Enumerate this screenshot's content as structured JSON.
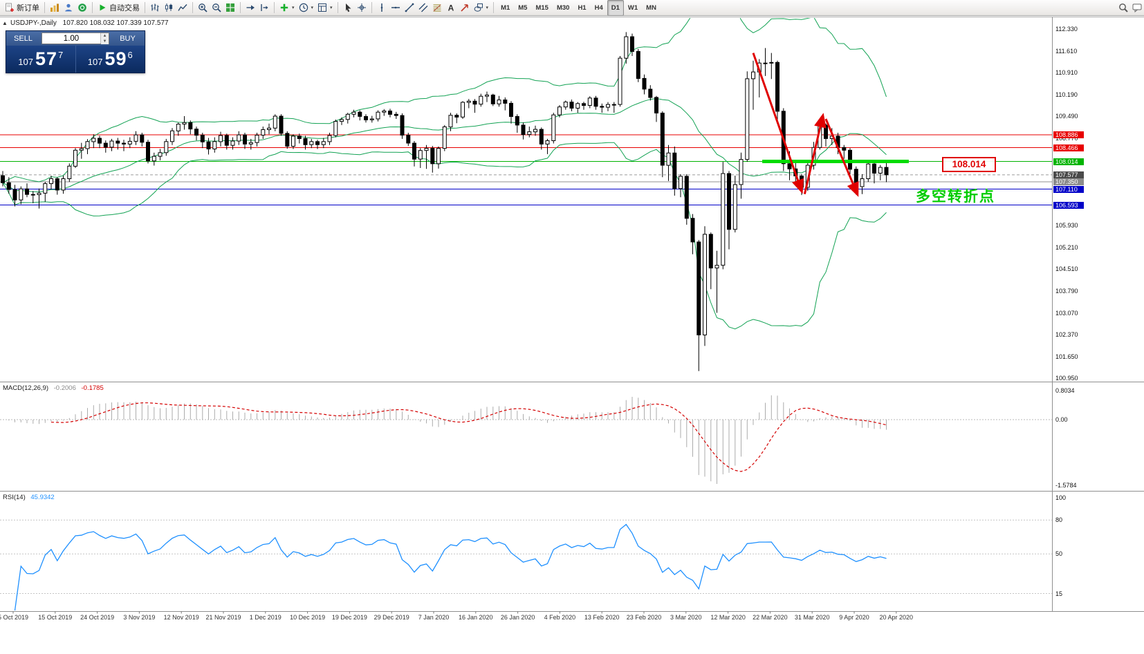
{
  "toolbar": {
    "groups": [
      {
        "items": [
          {
            "name": "new-order-button",
            "icon": "new-order",
            "label": "新订单"
          }
        ]
      },
      {
        "items": [
          {
            "name": "charts-window-button",
            "icon": "charts"
          },
          {
            "name": "profiles-button",
            "icon": "profiles"
          },
          {
            "name": "community-button",
            "icon": "community"
          }
        ]
      },
      {
        "items": [
          {
            "name": "autotrading-button",
            "icon": "play",
            "label": "自动交易"
          }
        ]
      },
      {
        "items": [
          {
            "name": "bar-chart-button",
            "icon": "bars"
          },
          {
            "name": "candle-chart-button",
            "icon": "candles"
          },
          {
            "name": "line-chart-button",
            "icon": "line"
          }
        ]
      },
      {
        "items": [
          {
            "name": "zoom-in-button",
            "icon": "zoom-in"
          },
          {
            "name": "zoom-out-button",
            "icon": "zoom-out"
          },
          {
            "name": "tile-windows-button",
            "icon": "tile"
          }
        ]
      },
      {
        "items": [
          {
            "name": "auto-scroll-button",
            "icon": "autoscroll"
          },
          {
            "name": "chart-shift-button",
            "icon": "shift"
          }
        ]
      },
      {
        "items": [
          {
            "name": "indicators-button",
            "icon": "plus",
            "caret": true
          },
          {
            "name": "periods-button",
            "icon": "clock",
            "caret": true
          },
          {
            "name": "templates-button",
            "icon": "template",
            "caret": true
          }
        ]
      },
      {
        "items": [
          {
            "name": "cursor-button",
            "icon": "cursor"
          },
          {
            "name": "crosshair-button",
            "icon": "crosshair"
          }
        ]
      },
      {
        "items": [
          {
            "name": "vertical-line-button",
            "icon": "vline"
          },
          {
            "name": "horizontal-line-button",
            "icon": "hline"
          },
          {
            "name": "trendline-button",
            "icon": "trendline"
          },
          {
            "name": "channel-button",
            "icon": "channel"
          },
          {
            "name": "fibonacci-button",
            "icon": "fibo"
          },
          {
            "name": "text-button",
            "icon": "text"
          },
          {
            "name": "arrows-button",
            "icon": "arrows-tool"
          },
          {
            "name": "shapes-button",
            "icon": "shapes",
            "caret": true
          }
        ]
      },
      {
        "items": [
          {
            "name": "tf-m1",
            "label": "M1"
          },
          {
            "name": "tf-m5",
            "label": "M5"
          },
          {
            "name": "tf-m15",
            "label": "M15"
          },
          {
            "name": "tf-m30",
            "label": "M30"
          },
          {
            "name": "tf-h1",
            "label": "H1"
          },
          {
            "name": "tf-h4",
            "label": "H4"
          },
          {
            "name": "tf-d1",
            "label": "D1",
            "active": true
          },
          {
            "name": "tf-w1",
            "label": "W1"
          },
          {
            "name": "tf-mn",
            "label": "MN"
          }
        ]
      },
      {
        "align": "right",
        "items": [
          {
            "name": "search-button",
            "icon": "search"
          },
          {
            "name": "feedback-button",
            "icon": "feedback"
          }
        ]
      }
    ]
  },
  "chart": {
    "toggle_glyph": "▲",
    "title": {
      "symbol": "USDJPY-,Daily",
      "ohlc": "107.820 108.032 107.339 107.577"
    },
    "one_click": {
      "sell_label": "SELL",
      "buy_label": "BUY",
      "volume": "1.00",
      "sell_small": "107",
      "sell_big": "57",
      "sell_sup": "7",
      "buy_small": "107",
      "buy_big": "59",
      "buy_sup": "6",
      "spin_up": "▲",
      "spin_down": "▼"
    }
  },
  "annotations": {
    "box_text": "108.014",
    "cn_text": "多空转折点"
  },
  "price_scale": {
    "regular": [
      "112.330",
      "111.610",
      "110.910",
      "110.190",
      "109.490",
      "108.770",
      "105.930",
      "105.210",
      "104.510",
      "103.790",
      "103.070",
      "102.370",
      "101.650",
      "100.950"
    ],
    "special": [
      {
        "text": "108.886",
        "bg": "#E80000"
      },
      {
        "text": "108.466",
        "bg": "#E80000"
      },
      {
        "text": "108.014",
        "bg": "#00B400"
      },
      {
        "text": "107.577",
        "bg": "#4A4A4A"
      },
      {
        "text": "107.350",
        "bg": "#8C8C8C"
      },
      {
        "text": "107.110",
        "bg": "#0000C8"
      },
      {
        "text": "106.593",
        "bg": "#0000C8"
      }
    ]
  },
  "time_axis": [
    "5 Oct 2019",
    "15 Oct 2019",
    "24 Oct 2019",
    "3 Nov 2019",
    "12 Nov 2019",
    "21 Nov 2019",
    "1 Dec 2019",
    "10 Dec 2019",
    "19 Dec 2019",
    "29 Dec 2019",
    "7 Jan 2020",
    "16 Jan 2020",
    "26 Jan 2020",
    "4 Feb 2020",
    "13 Feb 2020",
    "23 Feb 2020",
    "3 Mar 2020",
    "12 Mar 2020",
    "22 Mar 2020",
    "31 Mar 2020",
    "9 Apr 2020",
    "20 Apr 2020"
  ],
  "chart_data": {
    "type": "candlestick",
    "symbol": "USDJPY-",
    "period": "Daily",
    "ohlc_current": {
      "open": 107.82,
      "high": 108.032,
      "low": 107.339,
      "close": 107.577
    },
    "ylim": [
      100.86,
      112.69
    ],
    "candles": [
      [
        107.55,
        107.7,
        107.2,
        107.32
      ],
      [
        107.32,
        107.5,
        106.96,
        107.1
      ],
      [
        107.1,
        107.25,
        106.55,
        106.76
      ],
      [
        106.76,
        107.2,
        106.62,
        107.12
      ],
      [
        107.12,
        107.3,
        106.85,
        106.94
      ],
      [
        106.94,
        107.05,
        106.65,
        106.93
      ],
      [
        106.93,
        107.13,
        106.48,
        106.98
      ],
      [
        106.98,
        107.35,
        106.7,
        107.29
      ],
      [
        107.29,
        107.55,
        107.1,
        107.45
      ],
      [
        107.45,
        107.5,
        106.93,
        107.08
      ],
      [
        107.08,
        107.55,
        106.96,
        107.45
      ],
      [
        107.45,
        107.95,
        107.35,
        107.86
      ],
      [
        107.86,
        108.45,
        107.8,
        108.38
      ],
      [
        108.38,
        108.62,
        108.1,
        108.43
      ],
      [
        108.43,
        108.74,
        108.25,
        108.66
      ],
      [
        108.66,
        108.9,
        108.45,
        108.77
      ],
      [
        108.77,
        108.85,
        108.45,
        108.61
      ],
      [
        108.61,
        108.7,
        108.3,
        108.48
      ],
      [
        108.48,
        108.75,
        108.35,
        108.68
      ],
      [
        108.68,
        108.78,
        108.4,
        108.61
      ],
      [
        108.61,
        108.72,
        108.35,
        108.58
      ],
      [
        108.58,
        108.8,
        108.45,
        108.67
      ],
      [
        108.67,
        109.0,
        108.55,
        108.88
      ],
      [
        108.88,
        108.95,
        108.5,
        108.64
      ],
      [
        108.64,
        108.72,
        107.95,
        108.03
      ],
      [
        108.03,
        108.3,
        107.88,
        108.18
      ],
      [
        108.18,
        108.42,
        108.05,
        108.3
      ],
      [
        108.3,
        108.75,
        108.2,
        108.66
      ],
      [
        108.66,
        109.1,
        108.55,
        109.01
      ],
      [
        109.01,
        109.28,
        108.85,
        109.23
      ],
      [
        109.23,
        109.49,
        109.05,
        109.28
      ],
      [
        109.28,
        109.35,
        108.9,
        109.07
      ],
      [
        109.07,
        109.15,
        108.7,
        108.87
      ],
      [
        108.87,
        108.95,
        108.45,
        108.65
      ],
      [
        108.65,
        108.78,
        108.24,
        108.42
      ],
      [
        108.42,
        108.8,
        108.3,
        108.66
      ],
      [
        108.66,
        108.98,
        108.5,
        108.86
      ],
      [
        108.86,
        108.92,
        108.4,
        108.54
      ],
      [
        108.54,
        108.8,
        108.4,
        108.68
      ],
      [
        108.68,
        109.0,
        108.55,
        108.88
      ],
      [
        108.88,
        108.95,
        108.42,
        108.58
      ],
      [
        108.58,
        108.75,
        108.4,
        108.63
      ],
      [
        108.63,
        108.95,
        108.5,
        108.87
      ],
      [
        108.87,
        109.15,
        108.75,
        109.05
      ],
      [
        109.05,
        109.25,
        108.9,
        109.1
      ],
      [
        109.1,
        109.55,
        109.0,
        109.49
      ],
      [
        109.49,
        109.55,
        108.85,
        108.93
      ],
      [
        108.93,
        109.0,
        108.43,
        108.51
      ],
      [
        108.51,
        108.9,
        108.42,
        108.84
      ],
      [
        108.84,
        108.92,
        108.6,
        108.76
      ],
      [
        108.76,
        108.85,
        108.4,
        108.56
      ],
      [
        108.56,
        108.75,
        108.45,
        108.66
      ],
      [
        108.66,
        108.72,
        108.42,
        108.56
      ],
      [
        108.56,
        108.78,
        108.45,
        108.66
      ],
      [
        108.66,
        108.95,
        108.55,
        108.86
      ],
      [
        108.86,
        109.38,
        108.8,
        109.32
      ],
      [
        109.32,
        109.45,
        109.2,
        109.38
      ],
      [
        109.38,
        109.6,
        109.25,
        109.55
      ],
      [
        109.55,
        109.7,
        109.45,
        109.62
      ],
      [
        109.62,
        109.68,
        109.35,
        109.48
      ],
      [
        109.48,
        109.55,
        109.28,
        109.37
      ],
      [
        109.37,
        109.5,
        109.28,
        109.4
      ],
      [
        109.4,
        109.68,
        109.32,
        109.62
      ],
      [
        109.62,
        109.72,
        109.5,
        109.66
      ],
      [
        109.66,
        109.73,
        109.45,
        109.55
      ],
      [
        109.55,
        109.63,
        109.4,
        109.51
      ],
      [
        109.51,
        109.58,
        108.75,
        108.87
      ],
      [
        108.87,
        108.95,
        108.52,
        108.61
      ],
      [
        108.61,
        108.68,
        107.85,
        108.09
      ],
      [
        108.09,
        108.45,
        107.8,
        108.37
      ],
      [
        108.37,
        108.55,
        107.77,
        108.44
      ],
      [
        108.44,
        108.52,
        107.65,
        107.94
      ],
      [
        107.94,
        108.5,
        107.78,
        108.44
      ],
      [
        108.44,
        109.2,
        108.35,
        109.14
      ],
      [
        109.14,
        109.6,
        109.0,
        109.52
      ],
      [
        109.52,
        109.58,
        109.26,
        109.46
      ],
      [
        109.46,
        109.98,
        109.4,
        109.94
      ],
      [
        109.94,
        110.05,
        109.75,
        109.98
      ],
      [
        109.98,
        110.05,
        109.6,
        109.88
      ],
      [
        109.88,
        110.22,
        109.8,
        110.14
      ],
      [
        110.14,
        110.29,
        109.95,
        110.18
      ],
      [
        110.18,
        110.22,
        109.82,
        109.89
      ],
      [
        109.89,
        110.15,
        109.8,
        110.02
      ],
      [
        110.02,
        110.1,
        109.68,
        109.91
      ],
      [
        109.91,
        109.98,
        109.25,
        109.48
      ],
      [
        109.48,
        109.55,
        108.95,
        109.2
      ],
      [
        109.2,
        109.28,
        108.73,
        108.89
      ],
      [
        108.89,
        109.15,
        108.8,
        108.98
      ],
      [
        108.98,
        109.18,
        108.85,
        109.06
      ],
      [
        109.06,
        109.12,
        108.4,
        108.58
      ],
      [
        108.58,
        108.75,
        108.25,
        108.69
      ],
      [
        108.69,
        109.6,
        108.6,
        109.53
      ],
      [
        109.53,
        109.85,
        109.45,
        109.79
      ],
      [
        109.79,
        110.0,
        109.7,
        109.95
      ],
      [
        109.95,
        110.03,
        109.65,
        109.75
      ],
      [
        109.75,
        109.95,
        109.6,
        109.9
      ],
      [
        109.9,
        109.96,
        109.7,
        109.84
      ],
      [
        109.84,
        110.14,
        109.75,
        110.08
      ],
      [
        110.08,
        110.15,
        109.7,
        109.81
      ],
      [
        109.81,
        109.9,
        109.6,
        109.78
      ],
      [
        109.78,
        109.95,
        109.65,
        109.87
      ],
      [
        109.87,
        109.95,
        109.6,
        109.87
      ],
      [
        109.87,
        111.45,
        109.8,
        111.38
      ],
      [
        111.38,
        112.23,
        111.2,
        112.08
      ],
      [
        112.08,
        112.18,
        111.45,
        111.6
      ],
      [
        111.6,
        111.68,
        110.6,
        110.72
      ],
      [
        110.72,
        110.85,
        110.2,
        110.37
      ],
      [
        110.37,
        110.5,
        110.0,
        110.1
      ],
      [
        110.1,
        110.15,
        109.3,
        109.59
      ],
      [
        109.59,
        109.65,
        107.5,
        107.89
      ],
      [
        107.89,
        108.55,
        107.38,
        108.29
      ],
      [
        108.29,
        108.5,
        106.9,
        107.13
      ],
      [
        107.13,
        107.6,
        106.85,
        107.53
      ],
      [
        107.53,
        107.6,
        105.95,
        106.16
      ],
      [
        106.16,
        106.3,
        104.99,
        105.39
      ],
      [
        105.39,
        105.45,
        101.18,
        102.36
      ],
      [
        102.36,
        105.9,
        102.0,
        105.64
      ],
      [
        105.64,
        105.7,
        103.85,
        104.54
      ],
      [
        104.54,
        105.1,
        103.08,
        104.63
      ],
      [
        104.63,
        108.0,
        104.5,
        107.62
      ],
      [
        107.62,
        107.7,
        105.15,
        105.8
      ],
      [
        105.8,
        107.55,
        105.7,
        107.26
      ],
      [
        107.26,
        108.3,
        106.8,
        108.08
      ],
      [
        108.08,
        110.95,
        108.0,
        110.71
      ],
      [
        110.71,
        111.3,
        109.7,
        110.93
      ],
      [
        110.93,
        111.35,
        110.1,
        111.22
      ],
      [
        111.22,
        111.71,
        110.8,
        111.22
      ],
      [
        111.22,
        111.55,
        110.7,
        111.24
      ],
      [
        111.24,
        111.3,
        109.3,
        109.65
      ],
      [
        109.65,
        109.75,
        107.7,
        107.94
      ],
      [
        107.94,
        108.35,
        107.4,
        107.77
      ],
      [
        107.77,
        108.05,
        107.25,
        107.54
      ],
      [
        107.54,
        107.6,
        106.92,
        107.17
      ],
      [
        107.17,
        108.0,
        107.05,
        107.89
      ],
      [
        107.89,
        108.65,
        107.75,
        108.47
      ],
      [
        108.47,
        109.38,
        108.4,
        109.2
      ],
      [
        109.2,
        109.25,
        108.5,
        108.76
      ],
      [
        108.76,
        109.1,
        108.55,
        108.84
      ],
      [
        108.84,
        108.95,
        108.25,
        108.47
      ],
      [
        108.47,
        108.55,
        108.1,
        108.38
      ],
      [
        108.38,
        108.45,
        107.6,
        107.76
      ],
      [
        107.76,
        107.85,
        106.93,
        107.19
      ],
      [
        107.19,
        107.6,
        106.95,
        107.45
      ],
      [
        107.45,
        108.05,
        107.35,
        107.93
      ],
      [
        107.93,
        108.0,
        107.3,
        107.63
      ],
      [
        107.63,
        107.9,
        107.4,
        107.82
      ],
      [
        107.82,
        108.032,
        107.339,
        107.577
      ]
    ],
    "bollinger": {
      "period": 20,
      "deviation": 2,
      "color": "#12A253"
    },
    "hlines": [
      {
        "price": 108.886,
        "color": "#E80000",
        "width": 1,
        "name": "resistance-line-1"
      },
      {
        "price": 108.466,
        "color": "#E80000",
        "width": 1,
        "name": "resistance-line-2"
      },
      {
        "price": 108.014,
        "color": "#00B400",
        "width": 1,
        "name": "pivot-line-green"
      },
      {
        "price": 107.35,
        "color": "#909090",
        "width": 1,
        "name": "gray-line"
      },
      {
        "price": 107.11,
        "color": "#0000C8",
        "width": 1,
        "name": "support-line-1"
      },
      {
        "price": 106.593,
        "color": "#0000C8",
        "width": 1,
        "name": "support-line-2"
      }
    ],
    "bid_line": {
      "price": 107.577,
      "color": "#9a9a9a"
    },
    "thick_segment": {
      "price": 108.014,
      "i_from": 125.5,
      "i_to": 149.7,
      "color": "#00DC00",
      "width": 5
    },
    "arrows": [
      {
        "from_i": 124,
        "from_p": 111.55,
        "to_i": 132,
        "to_p": 107.05
      },
      {
        "from_i": 132.5,
        "from_p": 106.95,
        "to_i": 135.5,
        "to_p": 109.5
      },
      {
        "from_i": 136,
        "from_p": 109.4,
        "to_i": 141.2,
        "to_p": 106.95
      }
    ],
    "arrow_color": "#E00000",
    "macd": {
      "label": "MACD(12,26,9)",
      "value_main": "-0.2006",
      "value_signal": "-0.1785",
      "axis_labels": [
        "0.8034",
        "0.00",
        "-1.5784"
      ],
      "hist_color": "#ABABAB",
      "signal_color": "#D40000"
    },
    "rsi": {
      "label": "RSI(14)",
      "value": "45.9342",
      "levels": [
        80,
        50,
        15
      ],
      "axis_labels": [
        "100",
        "80",
        "50",
        "15"
      ],
      "color": "#1E90FF"
    }
  }
}
